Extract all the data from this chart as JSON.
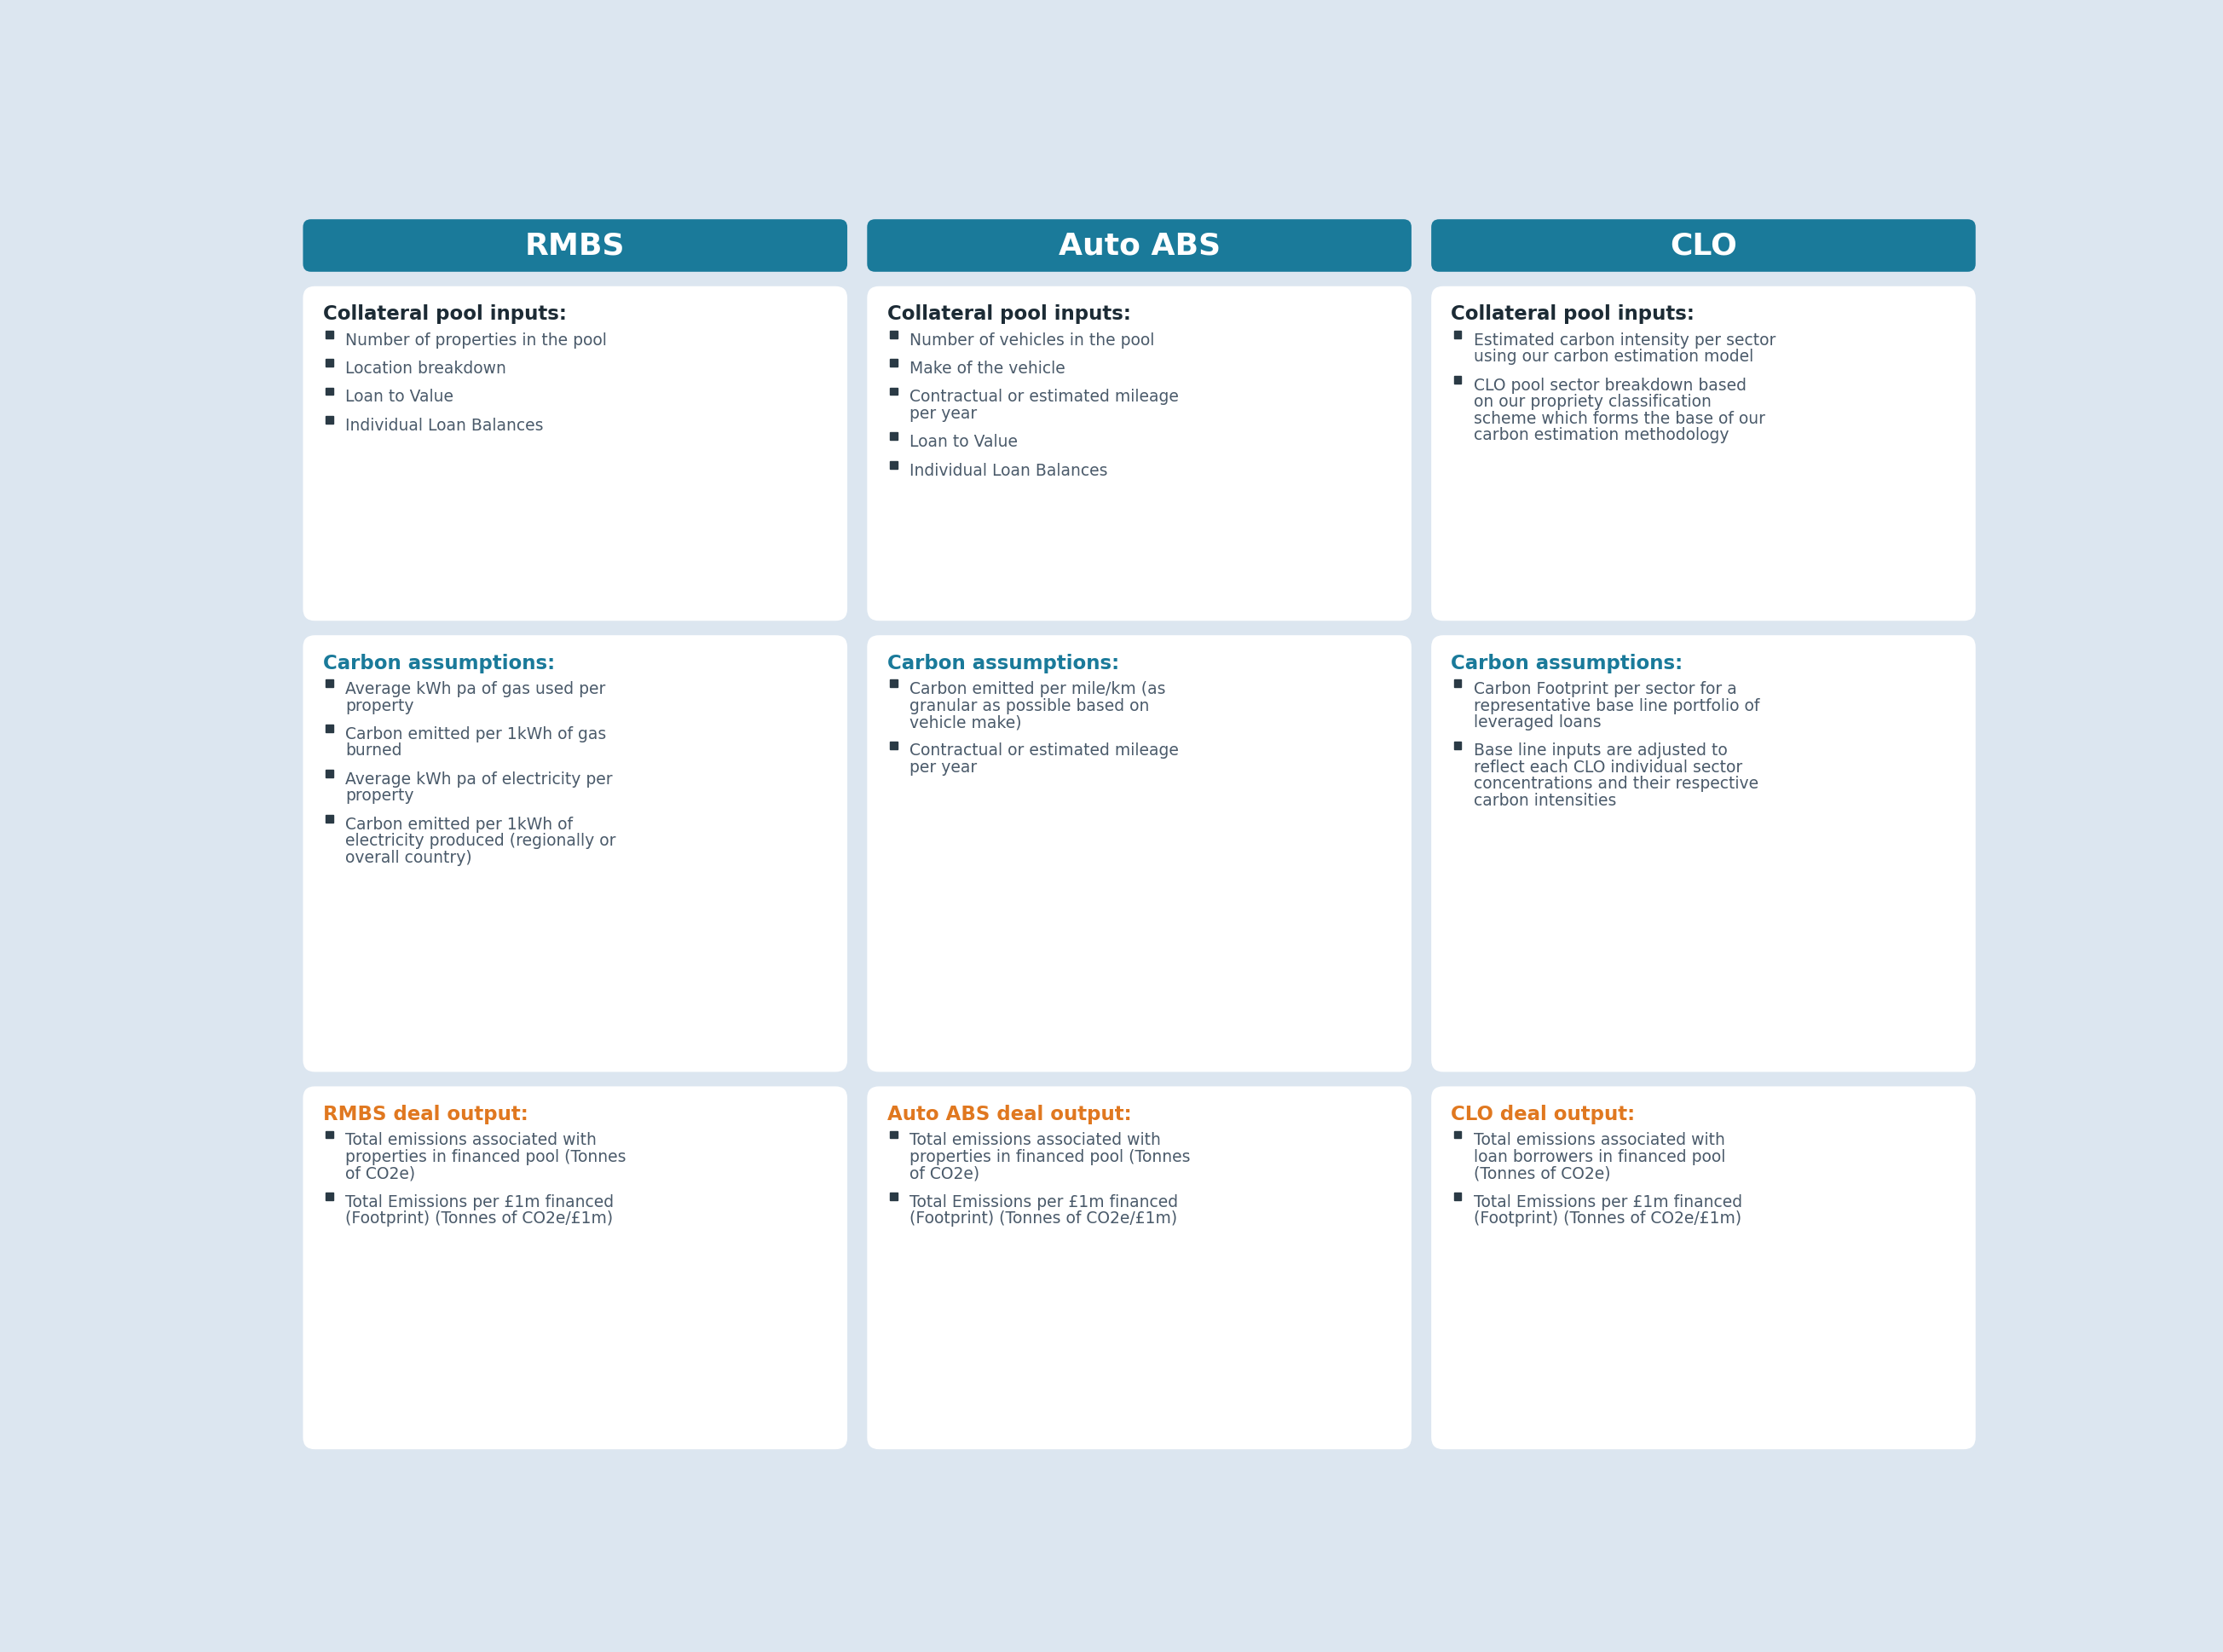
{
  "background_color": "#dce6f0",
  "header_color": "#1a7a9a",
  "header_text_color": "#ffffff",
  "card_bg_color": "#ffffff",
  "title_dark_color": "#1c2b35",
  "title_blue_color": "#1a7a9a",
  "title_orange_color": "#e07820",
  "bullet_color": "#2a3a45",
  "bullet_text_color": "#4a5a6a",
  "columns": [
    {
      "header": "RMBS",
      "sections": [
        {
          "title": "Collateral pool inputs:",
          "title_color": "dark",
          "bullets": [
            "Number of properties in the pool",
            "Location breakdown",
            "Loan to Value",
            "Individual Loan Balances"
          ]
        },
        {
          "title": "Carbon assumptions:",
          "title_color": "blue",
          "bullets": [
            "Average kWh pa of gas used per\nproperty",
            "Carbon emitted per 1kWh of gas\nburned",
            "Average kWh pa of electricity per\nproperty",
            "Carbon emitted per 1kWh of\nelectricity produced (regionally or\noverall country)"
          ]
        },
        {
          "title": "RMBS deal output:",
          "title_color": "orange",
          "bullets": [
            "Total emissions associated with\nproperties in financed pool (Tonnes\nof CO2e)",
            "Total Emissions per £1m financed\n(Footprint) (Tonnes of CO2e/£1m)"
          ]
        }
      ]
    },
    {
      "header": "Auto ABS",
      "sections": [
        {
          "title": "Collateral pool inputs:",
          "title_color": "dark",
          "bullets": [
            "Number of vehicles in the pool",
            "Make of the vehicle",
            "Contractual or estimated mileage\nper year",
            "Loan to Value",
            "Individual Loan Balances"
          ]
        },
        {
          "title": "Carbon assumptions:",
          "title_color": "blue",
          "bullets": [
            "Carbon emitted per mile/km (as\ngranular as possible based on\nvehicle make)",
            "Contractual or estimated mileage\nper year"
          ]
        },
        {
          "title": "Auto ABS deal output:",
          "title_color": "orange",
          "bullets": [
            "Total emissions associated with\nproperties in financed pool (Tonnes\nof CO2e)",
            "Total Emissions per £1m financed\n(Footprint) (Tonnes of CO2e/£1m)"
          ]
        }
      ]
    },
    {
      "header": "CLO",
      "sections": [
        {
          "title": "Collateral pool inputs:",
          "title_color": "dark",
          "bullets": [
            "Estimated carbon intensity per sector\nusing our carbon estimation model",
            "CLO pool sector breakdown based\non our propriety classification\nscheme which forms the base of our\ncarbon estimation methodology"
          ]
        },
        {
          "title": "Carbon assumptions:",
          "title_color": "blue",
          "bullets": [
            "Carbon Footprint per sector for a\nrepresentative base line portfolio of\nleveraged loans",
            "Base line inputs are adjusted to\nreflect each CLO individual sector\nconcentrations and their respective\ncarbon intensities"
          ]
        },
        {
          "title": "CLO deal output:",
          "title_color": "orange",
          "bullets": [
            "Total emissions associated with\nloan borrowers in financed pool\n(Tonnes of CO2e)",
            "Total Emissions per £1m financed\n(Footprint) (Tonnes of CO2e/£1m)"
          ]
        }
      ]
    }
  ]
}
